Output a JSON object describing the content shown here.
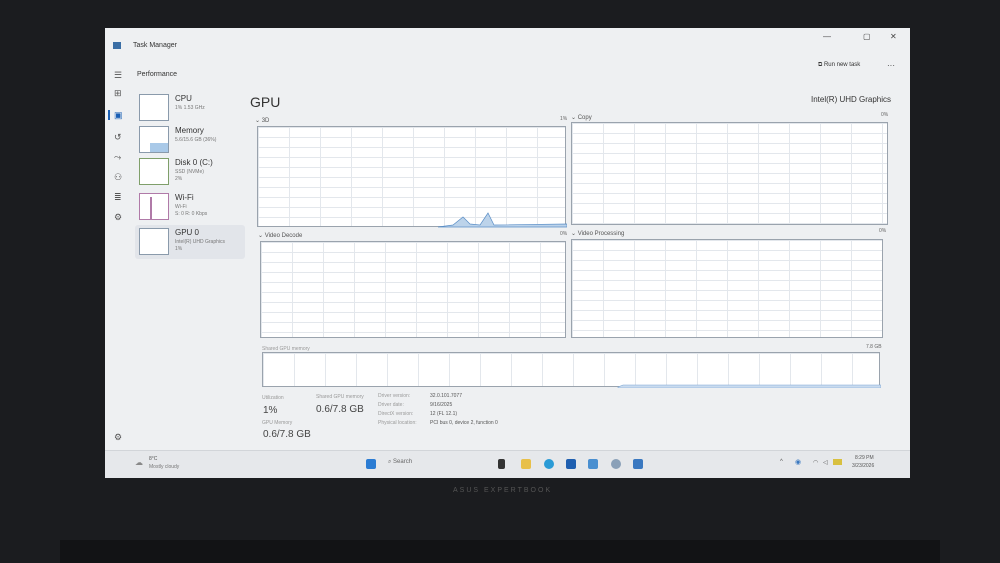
{
  "window": {
    "title": "Task Manager",
    "minimize": "—",
    "maximize": "▢",
    "close": "✕"
  },
  "header": {
    "section": "Performance",
    "run_new_task": "Run new task",
    "more": "···"
  },
  "nav_icons": [
    "menu-icon",
    "processes-icon",
    "performance-icon",
    "app-history-icon",
    "startup-apps-icon",
    "users-icon",
    "details-icon",
    "services-icon",
    "settings-icon"
  ],
  "sidebar": {
    "items": [
      {
        "name": "CPU",
        "sub1": "1% 1.53 GHz",
        "sub2": ""
      },
      {
        "name": "Memory",
        "sub1": "5.6/15.6 GB (36%)",
        "sub2": ""
      },
      {
        "name": "Disk 0 (C:)",
        "sub1": "SSD (NVMe)",
        "sub2": "2%"
      },
      {
        "name": "Wi-Fi",
        "sub1": "Wi-Fi",
        "sub2": "S: 0 R: 0 Kbps"
      },
      {
        "name": "GPU 0",
        "sub1": "Intel(R) UHD Graphics",
        "sub2": "1%"
      }
    ]
  },
  "main": {
    "title": "GPU",
    "device": "Intel(R) UHD Graphics",
    "graphs": [
      {
        "label": "3D",
        "value": "1%"
      },
      {
        "label": "Copy",
        "value": "0%"
      },
      {
        "label": "Video Decode",
        "value": "0%"
      },
      {
        "label": "Video Processing",
        "value": "0%"
      }
    ],
    "shared_label": "Shared GPU memory",
    "shared_max": "7.8 GB",
    "stats": {
      "utilization_label": "Utilization",
      "utilization": "1%",
      "shared_label": "Shared GPU memory",
      "shared": "0.6/7.8 GB",
      "gpu_mem_label": "GPU Memory",
      "gpu_mem": "0.6/7.8 GB"
    },
    "details": [
      {
        "k": "Driver version:",
        "v": "32.0.101.7077"
      },
      {
        "k": "Driver date:",
        "v": "9/16/2025"
      },
      {
        "k": "DirectX version:",
        "v": "12 (FL 12.1)"
      },
      {
        "k": "Physical location:",
        "v": "PCI bus 0, device 2, function 0"
      }
    ]
  },
  "taskbar": {
    "weather_temp": "8°C",
    "weather_desc": "Mostly cloudy",
    "search": "Search",
    "time": "8:29 PM",
    "date": "3/23/2026"
  },
  "bezel": {
    "brand": "ASUS EXPERTBOOK"
  }
}
